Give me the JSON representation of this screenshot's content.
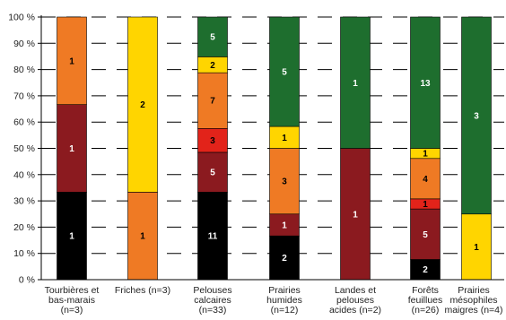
{
  "chart_data": {
    "type": "bar",
    "stacked": true,
    "percent": true,
    "ylim": [
      0,
      100
    ],
    "yticks": [
      "0 %",
      "10 %",
      "20 %",
      "30 %",
      "40 %",
      "50 %",
      "60 %",
      "70 %",
      "80 %",
      "90 %",
      "100 %"
    ],
    "grid": "dashed-horizontal",
    "categories": [
      [
        "Tourbières et",
        "bas-marais",
        "(n=3)"
      ],
      [
        "Friches (n=3)"
      ],
      [
        "Pelouses",
        "calcaires",
        "(n=33)"
      ],
      [
        "Prairies",
        "humides",
        "(n=12)"
      ],
      [
        "Landes et",
        "pelouses",
        "acides (n=2)"
      ],
      [
        "Forêts",
        "feuillues",
        "(n=26)"
      ],
      [
        "Prairies",
        "mésophiles",
        "maigres (n=4)"
      ]
    ],
    "colors": [
      "#000000",
      "#8b1a1f",
      "#e2231a",
      "#ef7a24",
      "#ffd500",
      "#1e6e2e"
    ],
    "bars": [
      [
        {
          "c": 0,
          "v": 1,
          "label": "1"
        },
        {
          "c": 1,
          "v": 1,
          "label": "1"
        },
        {
          "c": 3,
          "v": 1,
          "label": "1"
        }
      ],
      [
        {
          "c": 3,
          "v": 1,
          "label": "1"
        },
        {
          "c": 4,
          "v": 2,
          "label": "2"
        }
      ],
      [
        {
          "c": 0,
          "v": 11,
          "label": "11"
        },
        {
          "c": 1,
          "v": 5,
          "label": "5"
        },
        {
          "c": 2,
          "v": 3,
          "label": "3"
        },
        {
          "c": 3,
          "v": 7,
          "label": "7"
        },
        {
          "c": 4,
          "v": 2,
          "label": "2"
        },
        {
          "c": 5,
          "v": 5,
          "label": "5"
        }
      ],
      [
        {
          "c": 0,
          "v": 2,
          "label": "2"
        },
        {
          "c": 1,
          "v": 1,
          "label": "1"
        },
        {
          "c": 3,
          "v": 3,
          "label": "3"
        },
        {
          "c": 4,
          "v": 1,
          "label": "1"
        },
        {
          "c": 5,
          "v": 5,
          "label": "5"
        }
      ],
      [
        {
          "c": 1,
          "v": 1,
          "label": "1"
        },
        {
          "c": 5,
          "v": 1,
          "label": "1"
        }
      ],
      [
        {
          "c": 0,
          "v": 2,
          "label": "2"
        },
        {
          "c": 1,
          "v": 5,
          "label": "5"
        },
        {
          "c": 2,
          "v": 1,
          "label": "1"
        },
        {
          "c": 3,
          "v": 4,
          "label": "4"
        },
        {
          "c": 4,
          "v": 1,
          "label": "1"
        },
        {
          "c": 5,
          "v": 13,
          "label": "13"
        }
      ],
      [
        {
          "c": 4,
          "v": 1,
          "label": "1"
        },
        {
          "c": 5,
          "v": 3,
          "label": "3"
        }
      ]
    ]
  }
}
